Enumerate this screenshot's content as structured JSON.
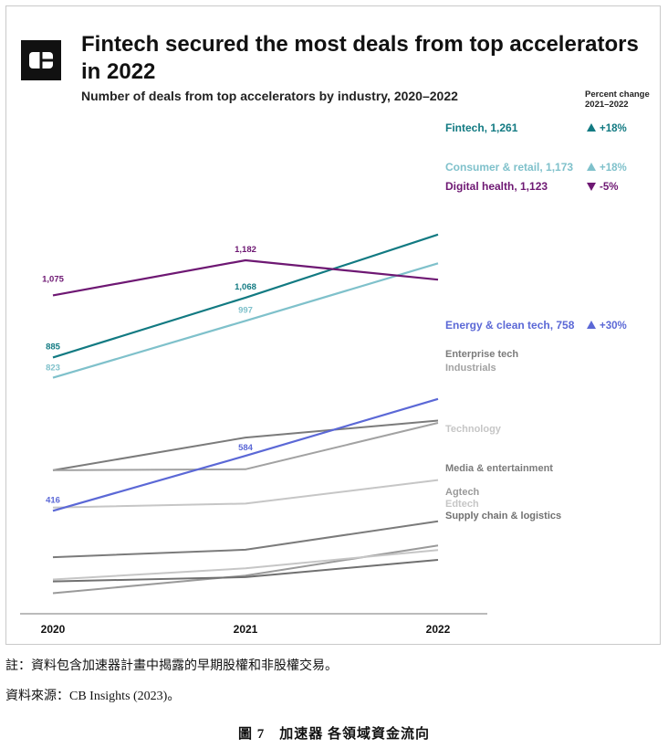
{
  "header": {
    "title": "Fintech secured the most deals from top accelerators in 2022",
    "subtitle": "Number of deals from top accelerators by industry, 2020–2022",
    "percent_header": "Percent change\n2021–2022",
    "logo_icon": "cb-insights-logo-icon"
  },
  "footer": {
    "note": "註：資料包含加速器計畫中揭露的早期股權和非股權交易。",
    "source": "資料來源：CB Insights (2023)。",
    "caption": "圖 7　加速器 各領域資金流向"
  },
  "chart_data": {
    "type": "line",
    "x": [
      "2020",
      "2021",
      "2022"
    ],
    "ylim": [
      0,
      1300
    ],
    "series": [
      {
        "name": "Fintech",
        "values": [
          885,
          1068,
          1261
        ],
        "color": "#127a82",
        "label": "Fintech, 1,261",
        "value_labels": [
          "885",
          "1,068",
          null
        ],
        "change": "+18%",
        "change_dir": "up",
        "bold": true
      },
      {
        "name": "Consumer & retail",
        "values": [
          823,
          997,
          1173
        ],
        "color": "#7fc1cb",
        "label": "Consumer & retail, 1,173",
        "value_labels": [
          "823",
          "997",
          null
        ],
        "change": "+18%",
        "change_dir": "up",
        "bold": true
      },
      {
        "name": "Digital health",
        "values": [
          1075,
          1182,
          1123
        ],
        "color": "#6e1873",
        "label": "Digital health, 1,123",
        "value_labels": [
          "1,075",
          "1,182",
          null
        ],
        "change": "-5%",
        "change_dir": "down",
        "bold": true
      },
      {
        "name": "Energy & clean tech",
        "values": [
          416,
          584,
          758
        ],
        "color": "#5b68d6",
        "label": "Energy & clean tech, 758",
        "value_labels": [
          "416",
          "584",
          null
        ],
        "change": "+30%",
        "change_dir": "up",
        "bold": true
      },
      {
        "name": "Enterprise tech",
        "values": [
          540,
          640,
          692
        ],
        "color": "#7b7b7b",
        "label": "Enterprise tech",
        "bold": false
      },
      {
        "name": "Industrials",
        "values": [
          540,
          543,
          685
        ],
        "color": "#a2a2a2",
        "label": "Industrials",
        "bold": false
      },
      {
        "name": "Technology",
        "values": [
          426,
          438,
          510
        ],
        "color": "#c6c6c6",
        "label": "Technology",
        "bold": false
      },
      {
        "name": "Media & entertainment",
        "values": [
          274,
          297,
          384
        ],
        "color": "#7b7b7b",
        "label": "Media & entertainment",
        "bold": false
      },
      {
        "name": "Agtech",
        "values": [
          164,
          218,
          310
        ],
        "color": "#9a9a9a",
        "label": "Agtech",
        "bold": false
      },
      {
        "name": "Edtech",
        "values": [
          206,
          240,
          296
        ],
        "color": "#c6c6c6",
        "label": "Edtech",
        "bold": false
      },
      {
        "name": "Supply chain & logistics",
        "values": [
          200,
          213,
          266
        ],
        "color": "#707070",
        "label": "Supply chain & logistics",
        "bold": false
      }
    ]
  }
}
